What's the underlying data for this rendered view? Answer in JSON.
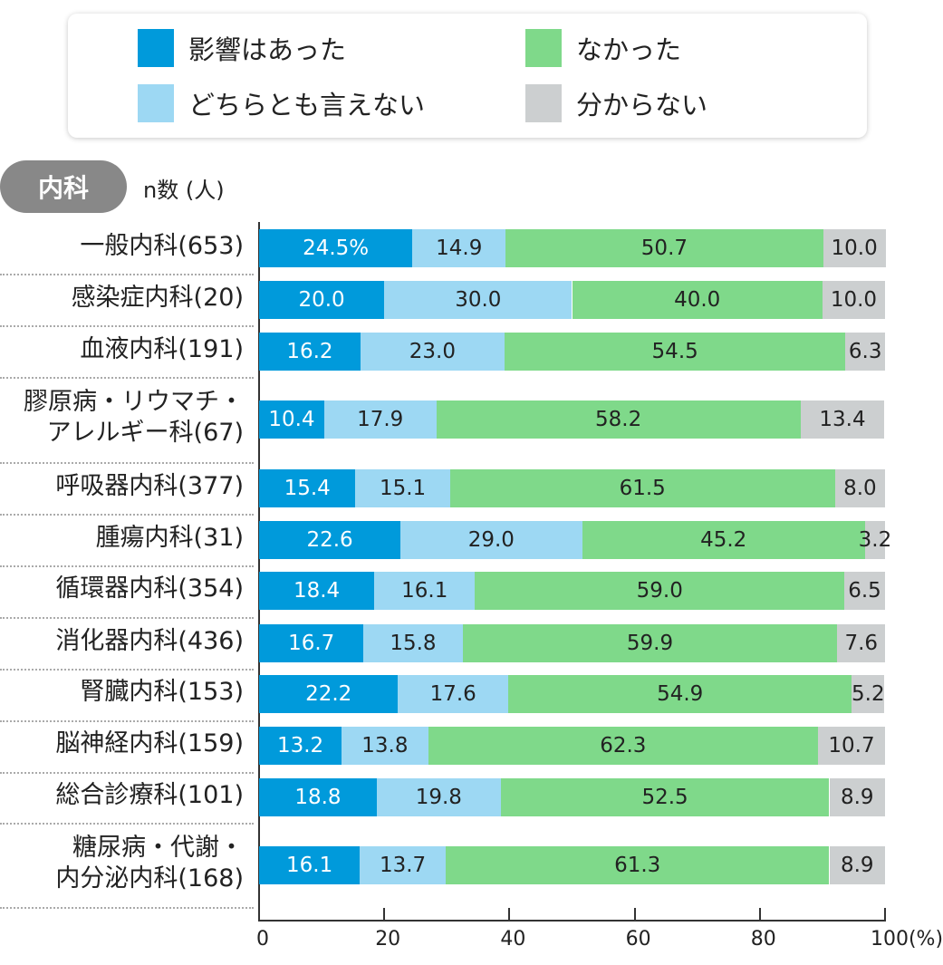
{
  "legend": [
    {
      "label": "影響はあった",
      "color": "#009ADB"
    },
    {
      "label": "なかった",
      "color": "#7FD98A"
    },
    {
      "label": "どちらとも言えない",
      "color": "#9DD8F3"
    },
    {
      "label": "分からない",
      "color": "#CCCFD0"
    }
  ],
  "category_pill": "内科",
  "n_label": "n数 (人)",
  "chart_data": {
    "type": "bar",
    "orientation": "horizontal-stacked-100",
    "xlim": [
      0,
      100
    ],
    "xticks": [
      "0",
      "20",
      "40",
      "60",
      "80",
      "100(%)"
    ],
    "series_names": [
      "影響はあった",
      "どちらとも言えない",
      "なかった",
      "分からない"
    ],
    "categories": [
      [
        "一般内科(653)"
      ],
      [
        "感染症内科(20)"
      ],
      [
        "血液内科(191)"
      ],
      [
        "膠原病・リウマチ・",
        "アレルギー科(67)"
      ],
      [
        "呼吸器内科(377)"
      ],
      [
        "腫瘍内科(31)"
      ],
      [
        "循環器内科(354)"
      ],
      [
        "消化器内科(436)"
      ],
      [
        "腎臓内科(153)"
      ],
      [
        "脳神経内科(159)"
      ],
      [
        "総合診療科(101)"
      ],
      [
        "糖尿病・代謝・",
        "内分泌内科(168)"
      ]
    ],
    "values": [
      [
        24.5,
        14.9,
        50.7,
        10.0
      ],
      [
        20.0,
        30.0,
        40.0,
        10.0
      ],
      [
        16.2,
        23.0,
        54.5,
        6.3
      ],
      [
        10.4,
        17.9,
        58.2,
        13.4
      ],
      [
        15.4,
        15.1,
        61.5,
        8.0
      ],
      [
        22.6,
        29.0,
        45.2,
        3.2
      ],
      [
        18.4,
        16.1,
        59.0,
        6.5
      ],
      [
        16.7,
        15.8,
        59.9,
        7.6
      ],
      [
        22.2,
        17.6,
        54.9,
        5.2
      ],
      [
        13.2,
        13.8,
        62.3,
        10.7
      ],
      [
        18.8,
        19.8,
        52.5,
        8.9
      ],
      [
        16.1,
        13.7,
        61.3,
        8.9
      ]
    ],
    "data_labels": [
      [
        "24.5%",
        "14.9",
        "50.7",
        "10.0"
      ],
      [
        "20.0",
        "30.0",
        "40.0",
        "10.0"
      ],
      [
        "16.2",
        "23.0",
        "54.5",
        "6.3"
      ],
      [
        "10.4",
        "17.9",
        "58.2",
        "13.4"
      ],
      [
        "15.4",
        "15.1",
        "61.5",
        "8.0"
      ],
      [
        "22.6",
        "29.0",
        "45.2",
        "3.2"
      ],
      [
        "18.4",
        "16.1",
        "59.0",
        "6.5"
      ],
      [
        "16.7",
        "15.8",
        "59.9",
        "7.6"
      ],
      [
        "22.2",
        "17.6",
        "54.9",
        "5.2"
      ],
      [
        "13.2",
        "13.8",
        "62.3",
        "10.7"
      ],
      [
        "18.8",
        "19.8",
        "52.5",
        "8.9"
      ],
      [
        "16.1",
        "13.7",
        "61.3",
        "8.9"
      ]
    ],
    "colors": [
      "#009ADB",
      "#9DD8F3",
      "#7FD98A",
      "#CCCFD0"
    ],
    "label_colors": [
      "#ffffff",
      "#222222",
      "#222222",
      "#222222"
    ]
  }
}
